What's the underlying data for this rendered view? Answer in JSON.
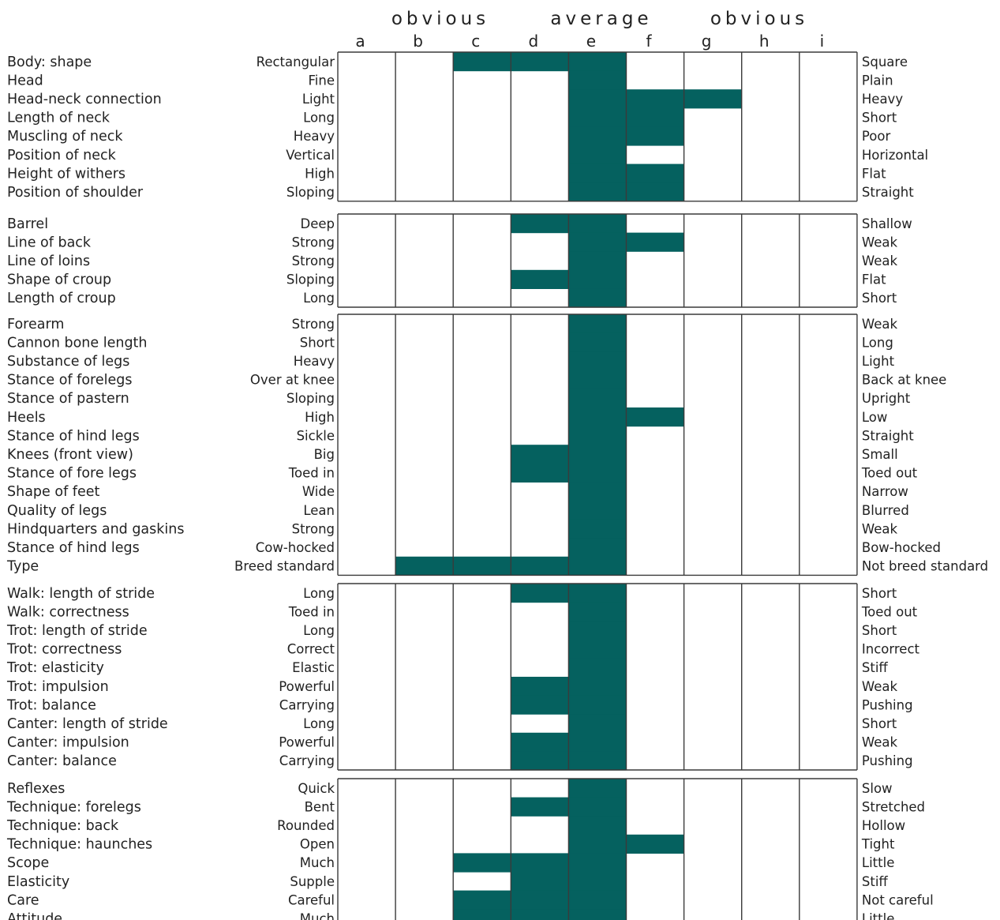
{
  "chart_data": {
    "type": "heatmap",
    "header_groups": [
      "obvious",
      "average",
      "obvious"
    ],
    "columns": [
      "a",
      "b",
      "c",
      "d",
      "e",
      "f",
      "g",
      "h",
      "i"
    ],
    "bar_color": "#05615f",
    "groups": [
      {
        "rows": [
          {
            "trait": "Body: shape",
            "left": "Rectangular",
            "right": "Square",
            "start": "c",
            "end": "e"
          },
          {
            "trait": "Head",
            "left": "Fine",
            "right": "Plain",
            "start": "e",
            "end": "e"
          },
          {
            "trait": "Head-neck connection",
            "left": "Light",
            "right": "Heavy",
            "start": "e",
            "end": "g"
          },
          {
            "trait": "Length of neck",
            "left": "Long",
            "right": "Short",
            "start": "e",
            "end": "f"
          },
          {
            "trait": "Muscling of neck",
            "left": "Heavy",
            "right": "Poor",
            "start": "e",
            "end": "f"
          },
          {
            "trait": "Position of neck",
            "left": "Vertical",
            "right": "Horizontal",
            "start": "e",
            "end": "e"
          },
          {
            "trait": "Height of withers",
            "left": "High",
            "right": "Flat",
            "start": "e",
            "end": "f"
          },
          {
            "trait": "Position of shoulder",
            "left": "Sloping",
            "right": "Straight",
            "start": "e",
            "end": "f"
          }
        ]
      },
      {
        "rows": [
          {
            "trait": "Barrel",
            "left": "Deep",
            "right": "Shallow",
            "start": "d",
            "end": "e"
          },
          {
            "trait": "Line of back",
            "left": "Strong",
            "right": "Weak",
            "start": "e",
            "end": "f"
          },
          {
            "trait": "Line of loins",
            "left": "Strong",
            "right": "Weak",
            "start": "e",
            "end": "e"
          },
          {
            "trait": "Shape of croup",
            "left": "Sloping",
            "right": "Flat",
            "start": "d",
            "end": "e"
          },
          {
            "trait": "Length of croup",
            "left": "Long",
            "right": "Short",
            "start": "e",
            "end": "e"
          }
        ]
      },
      {
        "rows": [
          {
            "trait": "Forearm",
            "left": "Strong",
            "right": "Weak",
            "start": "e",
            "end": "e"
          },
          {
            "trait": "Cannon bone length",
            "left": "Short",
            "right": "Long",
            "start": "e",
            "end": "e"
          },
          {
            "trait": "Substance of legs",
            "left": "Heavy",
            "right": "Light",
            "start": "e",
            "end": "e"
          },
          {
            "trait": "Stance of forelegs",
            "left": "Over at knee",
            "right": "Back at knee",
            "start": "e",
            "end": "e"
          },
          {
            "trait": "Stance of pastern",
            "left": "Sloping",
            "right": "Upright",
            "start": "e",
            "end": "e"
          },
          {
            "trait": "Heels",
            "left": "High",
            "right": "Low",
            "start": "e",
            "end": "f"
          },
          {
            "trait": "Stance of hind legs",
            "left": "Sickle",
            "right": "Straight",
            "start": "e",
            "end": "e"
          },
          {
            "trait": "Knees (front view)",
            "left": "Big",
            "right": "Small",
            "start": "d",
            "end": "e"
          },
          {
            "trait": "Stance of fore legs",
            "left": "Toed in",
            "right": "Toed out",
            "start": "d",
            "end": "e"
          },
          {
            "trait": "Shape of feet",
            "left": "Wide",
            "right": "Narrow",
            "start": "e",
            "end": "e"
          },
          {
            "trait": "Quality of legs",
            "left": "Lean",
            "right": "Blurred",
            "start": "e",
            "end": "e"
          },
          {
            "trait": "Hindquarters and gaskins",
            "left": "Strong",
            "right": "Weak",
            "start": "e",
            "end": "e"
          },
          {
            "trait": "Stance of hind legs",
            "left": "Cow-hocked",
            "right": "Bow-hocked",
            "start": "e",
            "end": "e"
          },
          {
            "trait": "Type",
            "left": "Breed standard",
            "right": "Not breed standard",
            "start": "b",
            "end": "e"
          }
        ]
      },
      {
        "rows": [
          {
            "trait": "Walk: length of stride",
            "left": "Long",
            "right": "Short",
            "start": "d",
            "end": "e"
          },
          {
            "trait": "Walk: correctness",
            "left": "Toed in",
            "right": "Toed out",
            "start": "e",
            "end": "e"
          },
          {
            "trait": "Trot: length of stride",
            "left": "Long",
            "right": "Short",
            "start": "e",
            "end": "e"
          },
          {
            "trait": "Trot: correctness",
            "left": "Correct",
            "right": "Incorrect",
            "start": "e",
            "end": "e"
          },
          {
            "trait": "Trot: elasticity",
            "left": "Elastic",
            "right": "Stiff",
            "start": "e",
            "end": "e"
          },
          {
            "trait": "Trot: impulsion",
            "left": "Powerful",
            "right": "Weak",
            "start": "d",
            "end": "e"
          },
          {
            "trait": "Trot: balance",
            "left": "Carrying",
            "right": "Pushing",
            "start": "d",
            "end": "e"
          },
          {
            "trait": "Canter: length of stride",
            "left": "Long",
            "right": "Short",
            "start": "e",
            "end": "e"
          },
          {
            "trait": "Canter: impulsion",
            "left": "Powerful",
            "right": "Weak",
            "start": "d",
            "end": "e"
          },
          {
            "trait": "Canter: balance",
            "left": "Carrying",
            "right": "Pushing",
            "start": "d",
            "end": "e"
          }
        ]
      },
      {
        "rows": [
          {
            "trait": "Reflexes",
            "left": "Quick",
            "right": "Slow",
            "start": "e",
            "end": "e"
          },
          {
            "trait": "Technique: forelegs",
            "left": "Bent",
            "right": "Stretched",
            "start": "d",
            "end": "e"
          },
          {
            "trait": "Technique: back",
            "left": "Rounded",
            "right": "Hollow",
            "start": "e",
            "end": "e"
          },
          {
            "trait": "Technique: haunches",
            "left": "Open",
            "right": "Tight",
            "start": "e",
            "end": "f"
          },
          {
            "trait": "Scope",
            "left": "Much",
            "right": "Little",
            "start": "c",
            "end": "e"
          },
          {
            "trait": "Elasticity",
            "left": "Supple",
            "right": "Stiff",
            "start": "d",
            "end": "e"
          },
          {
            "trait": "Care",
            "left": "Careful",
            "right": "Not careful",
            "start": "c",
            "end": "e"
          },
          {
            "trait": "Attitude",
            "left": "Much",
            "right": "Little",
            "start": "c",
            "end": "e"
          }
        ]
      }
    ]
  }
}
